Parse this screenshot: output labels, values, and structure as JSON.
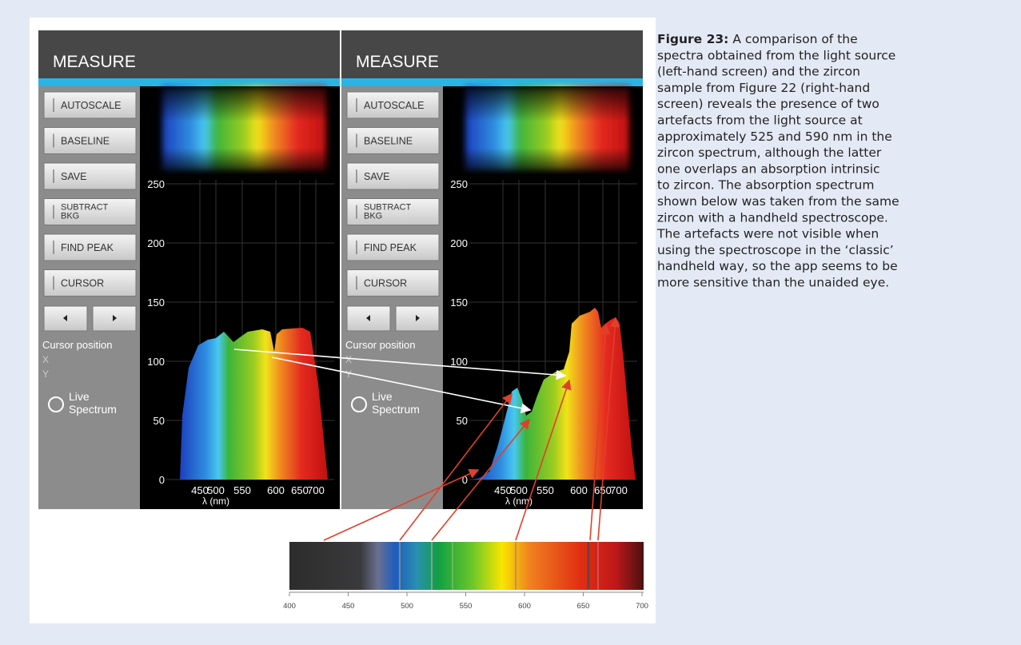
{
  "caption": {
    "label": "Figure 23:",
    "lines": [
      "A comparison of the",
      "spectra obtained from the light source",
      "(left-hand screen) and the zircon",
      "sample from Figure 22 (right-hand",
      "screen) reveals the presence of two",
      "artefacts from the light source at",
      "approximately 525 and 590 nm in the",
      "zircon spectrum, although the latter",
      "one overlaps an absorption intrinsic",
      "to zircon. The absorption spectrum",
      "shown below was taken from the same",
      "zircon with a handheld spectroscope.",
      "The artefacts were not visible when",
      "using the spectroscope in the ‘classic’",
      "handheld way, so the app seems to be",
      "more sensitive than the unaided eye."
    ]
  },
  "screens": [
    {
      "title": "MEASURE",
      "buttons": [
        [
          "AUTOSCALE"
        ],
        [
          "BASELINE"
        ],
        [
          "SAVE"
        ],
        [
          "SUBTRACT",
          "BKG"
        ],
        [
          "FIND PEAK"
        ],
        [
          "CURSOR"
        ]
      ],
      "cursor_position": "Cursor position",
      "x_label": "X",
      "y_label": "Y",
      "live_spectrum": [
        "Live",
        "Spectrum"
      ],
      "yticks": [
        250,
        200,
        150,
        100,
        50,
        0
      ],
      "xticks": [
        450,
        500,
        550,
        600,
        650,
        700
      ],
      "x_axis_label": "λ (nm)"
    },
    {
      "title": "MEASURE",
      "buttons": [
        [
          "AUTOSCALE"
        ],
        [
          "BASELINE"
        ],
        [
          "SAVE"
        ],
        [
          "SUBTRACT",
          "BKG"
        ],
        [
          "FIND PEAK"
        ],
        [
          "CURSOR"
        ]
      ],
      "cursor_position": "Cursor position",
      "x_label": "X",
      "y_label": "Y",
      "live_spectrum": [
        "Live",
        "Spectrum"
      ],
      "yticks": [
        250,
        200,
        150,
        100,
        50,
        0
      ],
      "xticks": [
        450,
        500,
        550,
        600,
        650,
        700
      ],
      "x_axis_label": "λ (nm)"
    }
  ],
  "absorption_scale": {
    "ticks": [
      400,
      450,
      500,
      550,
      600,
      650,
      700
    ]
  }
}
